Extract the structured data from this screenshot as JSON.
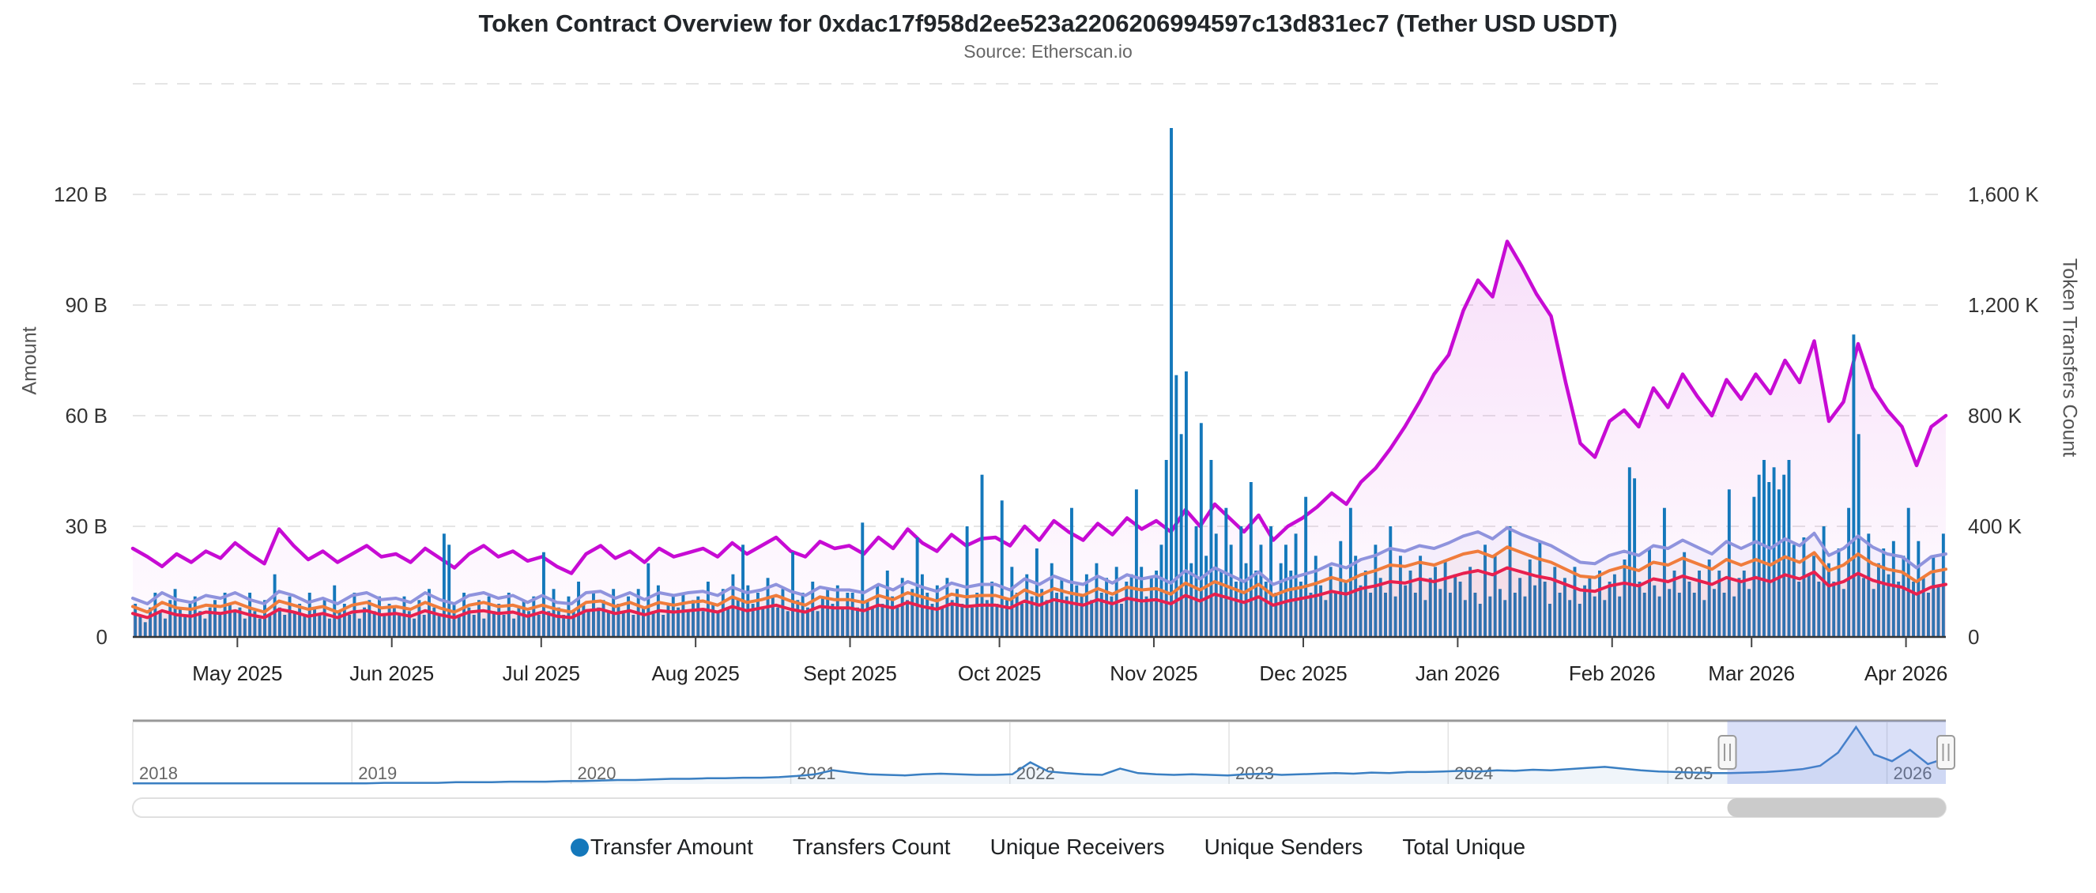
{
  "header": {
    "title": "Token Contract Overview for 0xdac17f958d2ee523a2206206994597c13d831ec7 (Tether USD USDT)",
    "subtitle": "Source: Etherscan.io"
  },
  "chart_data": {
    "type": "combo",
    "title": "Token Contract Overview for 0xdac17f958d2ee523a2206206994597c13d831ec7 (Tether USD USDT)",
    "subtitle": "Source: Etherscan.io",
    "x_range": {
      "start": "2025-04-10",
      "end": "2026-04-08",
      "resolution": "daily"
    },
    "left_axis": {
      "title": "Amount",
      "unit": "B",
      "labels": [
        "0",
        "30 B",
        "60 B",
        "90 B",
        "120 B"
      ],
      "tick_values": [
        0,
        30,
        60,
        90,
        120
      ],
      "max_gridline_value": 150,
      "grid": "dashed"
    },
    "right_axis": {
      "title": "Token Transfers Count",
      "unit": "K",
      "labels": [
        "0",
        "400 K",
        "800 K",
        "1,200 K",
        "1,600 K"
      ],
      "tick_values": [
        0,
        400,
        800,
        1200,
        1600
      ],
      "max_gridline_value": 2000
    },
    "x_axis": {
      "months": [
        [
          "May 2025",
          21
        ],
        [
          "Jun 2025",
          52
        ],
        [
          "Jul 2025",
          82
        ],
        [
          "Aug 2025",
          113
        ],
        [
          "Sept 2025",
          144
        ],
        [
          "Oct 2025",
          174
        ],
        [
          "Nov 2025",
          205
        ],
        [
          "Dec 2025",
          235
        ],
        [
          "Jan 2026",
          266
        ],
        [
          "Feb 2026",
          297
        ],
        [
          "Mar 2026",
          325
        ],
        [
          "Apr 2026",
          356
        ]
      ],
      "total_days": 364
    },
    "series": [
      {
        "name": "Transfer Amount",
        "type": "column",
        "axis": "left",
        "unit": "B",
        "color": "#1478bb",
        "values": [
          9,
          6,
          4,
          8,
          12,
          7,
          5,
          10,
          13,
          8,
          6,
          9,
          11,
          7,
          5,
          8,
          10,
          6,
          12,
          9,
          7,
          8,
          5,
          12,
          7,
          5,
          10,
          6,
          17,
          8,
          6,
          11,
          7,
          9,
          6,
          12,
          8,
          6,
          10,
          5,
          14,
          7,
          9,
          6,
          12,
          5,
          8,
          10,
          7,
          11,
          6,
          9,
          8,
          6,
          11,
          7,
          5,
          10,
          6,
          13,
          8,
          6,
          28,
          25,
          9,
          6,
          12,
          8,
          6,
          10,
          5,
          11,
          7,
          9,
          6,
          12,
          5,
          8,
          10,
          7,
          11,
          6,
          23,
          7,
          13,
          8,
          6,
          11,
          7,
          15,
          9,
          7,
          12,
          8,
          10,
          7,
          13,
          9,
          7,
          11,
          6,
          13,
          8,
          20,
          7,
          14,
          6,
          9,
          11,
          8,
          12,
          7,
          10,
          11,
          7,
          15,
          9,
          7,
          13,
          8,
          17,
          10,
          25,
          14,
          9,
          12,
          8,
          16,
          11,
          8,
          13,
          7,
          23,
          10,
          12,
          8,
          15,
          7,
          11,
          13,
          9,
          14,
          8,
          12,
          12,
          8,
          31,
          10,
          8,
          14,
          9,
          18,
          11,
          8,
          16,
          10,
          13,
          27,
          17,
          12,
          9,
          14,
          8,
          16,
          10,
          13,
          9,
          30,
          8,
          12,
          44,
          10,
          15,
          9,
          37,
          10,
          19,
          12,
          9,
          17,
          11,
          24,
          13,
          10,
          20,
          12,
          16,
          11,
          35,
          14,
          11,
          17,
          10,
          20,
          12,
          16,
          11,
          19,
          9,
          15,
          17,
          40,
          19,
          11,
          16,
          18,
          25,
          48,
          138,
          71,
          55,
          72,
          20,
          30,
          58,
          22,
          48,
          28,
          18,
          35,
          25,
          15,
          30,
          20,
          42,
          18,
          25,
          15,
          30,
          12,
          20,
          25,
          18,
          28,
          15,
          38,
          12,
          22,
          14,
          10,
          19,
          12,
          26,
          15,
          35,
          22,
          14,
          18,
          12,
          25,
          16,
          12,
          30,
          11,
          22,
          14,
          18,
          12,
          22,
          10,
          16,
          19,
          13,
          21,
          12,
          17,
          15,
          10,
          19,
          12,
          9,
          25,
          11,
          22,
          13,
          10,
          30,
          12,
          16,
          11,
          21,
          14,
          26,
          15,
          9,
          19,
          12,
          16,
          10,
          19,
          9,
          14,
          16,
          11,
          18,
          10,
          15,
          17,
          11,
          21,
          46,
          43,
          15,
          12,
          24,
          14,
          11,
          35,
          13,
          18,
          12,
          23,
          15,
          12,
          18,
          10,
          21,
          13,
          18,
          12,
          40,
          11,
          16,
          18,
          13,
          38,
          44,
          48,
          42,
          46,
          40,
          44,
          48,
          25,
          15,
          27,
          17,
          22,
          15,
          30,
          20,
          15,
          24,
          13,
          35,
          82,
          55,
          16,
          28,
          13,
          20,
          24,
          17,
          26,
          15,
          22,
          35,
          15,
          26,
          16,
          12,
          22,
          14,
          28
        ]
      },
      {
        "name": "Transfers Count",
        "type": "area-line",
        "axis": "right",
        "unit": "K",
        "color": "#c70bd4",
        "values": [
          320,
          290,
          255,
          300,
          270,
          310,
          285,
          340,
          300,
          265,
          390,
          330,
          280,
          310,
          270,
          300,
          330,
          290,
          300,
          270,
          320,
          285,
          250,
          300,
          330,
          290,
          310,
          275,
          290,
          255,
          230,
          300,
          330,
          285,
          310,
          270,
          320,
          290,
          305,
          320,
          290,
          340,
          300,
          330,
          360,
          310,
          290,
          345,
          320,
          330,
          300,
          360,
          320,
          390,
          340,
          310,
          370,
          330,
          355,
          360,
          330,
          400,
          350,
          420,
          380,
          350,
          410,
          370,
          430,
          390,
          420,
          380,
          460,
          400,
          480,
          430,
          380,
          440,
          350,
          400,
          430,
          470,
          520,
          480,
          560,
          610,
          680,
          760,
          850,
          950,
          1020,
          1180,
          1290,
          1230,
          1430,
          1340,
          1240,
          1160,
          920,
          700,
          650,
          780,
          820,
          760,
          900,
          830,
          950,
          870,
          800,
          930,
          860,
          950,
          880,
          1000,
          920,
          1070,
          780,
          850,
          1060,
          900,
          820,
          760,
          620,
          760,
          800
        ]
      },
      {
        "name": "Unique Receivers",
        "type": "line",
        "axis": "right",
        "unit": "K",
        "color": "#f07c3c",
        "values": [
          110,
          90,
          125,
          105,
          100,
          115,
          110,
          125,
          105,
          90,
          130,
          115,
          100,
          110,
          90,
          115,
          125,
          105,
          110,
          100,
          125,
          105,
          90,
          115,
          125,
          110,
          115,
          100,
          115,
          100,
          90,
          125,
          130,
          110,
          125,
          105,
          125,
          115,
          125,
          130,
          115,
          145,
          125,
          135,
          150,
          130,
          115,
          145,
          135,
          135,
          125,
          150,
          135,
          160,
          145,
          130,
          155,
          145,
          150,
          150,
          135,
          170,
          150,
          175,
          160,
          150,
          175,
          155,
          180,
          170,
          175,
          155,
          195,
          170,
          200,
          180,
          160,
          190,
          150,
          170,
          180,
          195,
          215,
          200,
          225,
          240,
          260,
          255,
          270,
          260,
          280,
          300,
          310,
          290,
          325,
          305,
          285,
          270,
          245,
          220,
          215,
          240,
          255,
          240,
          270,
          260,
          285,
          265,
          245,
          280,
          260,
          280,
          260,
          290,
          270,
          305,
          240,
          260,
          300,
          265,
          245,
          235,
          200,
          235,
          245
        ]
      },
      {
        "name": "Unique Senders",
        "type": "line",
        "axis": "right",
        "unit": "K",
        "color": "#e8204e",
        "values": [
          85,
          70,
          95,
          80,
          75,
          90,
          85,
          95,
          80,
          70,
          100,
          90,
          75,
          85,
          70,
          90,
          95,
          80,
          85,
          75,
          95,
          80,
          70,
          90,
          95,
          85,
          90,
          75,
          90,
          75,
          70,
          95,
          100,
          85,
          95,
          80,
          95,
          90,
          95,
          100,
          90,
          110,
          95,
          105,
          115,
          100,
          90,
          110,
          105,
          105,
          95,
          115,
          105,
          125,
          110,
          100,
          120,
          110,
          115,
          115,
          105,
          130,
          115,
          135,
          125,
          115,
          135,
          120,
          140,
          130,
          135,
          120,
          150,
          130,
          155,
          140,
          125,
          145,
          115,
          130,
          140,
          150,
          165,
          155,
          175,
          185,
          200,
          195,
          210,
          200,
          215,
          230,
          240,
          225,
          250,
          235,
          220,
          210,
          190,
          170,
          165,
          185,
          195,
          185,
          210,
          200,
          220,
          205,
          190,
          215,
          200,
          215,
          200,
          225,
          210,
          235,
          185,
          200,
          230,
          205,
          190,
          180,
          155,
          180,
          190
        ]
      },
      {
        "name": "Total Unique",
        "type": "line",
        "axis": "right",
        "unit": "K",
        "color": "#8f93dd",
        "values": [
          140,
          120,
          160,
          135,
          125,
          150,
          140,
          160,
          135,
          120,
          165,
          150,
          125,
          140,
          120,
          150,
          160,
          135,
          140,
          125,
          160,
          135,
          120,
          150,
          160,
          140,
          150,
          125,
          150,
          125,
          120,
          160,
          165,
          140,
          160,
          135,
          160,
          150,
          160,
          165,
          150,
          180,
          160,
          170,
          190,
          165,
          150,
          180,
          170,
          170,
          160,
          190,
          170,
          200,
          180,
          165,
          195,
          180,
          190,
          190,
          170,
          210,
          190,
          220,
          200,
          190,
          220,
          195,
          225,
          210,
          220,
          195,
          240,
          210,
          250,
          225,
          200,
          235,
          190,
          210,
          225,
          240,
          265,
          250,
          280,
          295,
          320,
          310,
          330,
          320,
          340,
          365,
          380,
          355,
          395,
          370,
          350,
          330,
          300,
          270,
          265,
          295,
          310,
          295,
          330,
          320,
          350,
          325,
          300,
          345,
          320,
          345,
          320,
          355,
          330,
          375,
          295,
          320,
          365,
          325,
          300,
          290,
          250,
          290,
          300
        ]
      }
    ],
    "navigator": {
      "line_color": "#3a7fc2",
      "years": [
        [
          "2018",
          0
        ],
        [
          "2019",
          365
        ],
        [
          "2020",
          730
        ],
        [
          "2021",
          1096
        ],
        [
          "2022",
          1461
        ],
        [
          "2023",
          1826
        ],
        [
          "2024",
          2191
        ],
        [
          "2025",
          2557
        ],
        [
          "2026",
          2922
        ]
      ],
      "total_days": 3020,
      "values": [
        1,
        1,
        1,
        1,
        1,
        1,
        1,
        1,
        1,
        1,
        1,
        1,
        1,
        1,
        2,
        2,
        2,
        2,
        3,
        3,
        3,
        4,
        4,
        4,
        5,
        5,
        6,
        7,
        7,
        8,
        9,
        9,
        10,
        10,
        11,
        11,
        12,
        14,
        17,
        24,
        20,
        17,
        16,
        15,
        17,
        18,
        17,
        16,
        16,
        17,
        38,
        22,
        19,
        17,
        16,
        27,
        19,
        17,
        16,
        17,
        16,
        15,
        17,
        18,
        16,
        17,
        18,
        19,
        18,
        20,
        19,
        21,
        21,
        22,
        23,
        22,
        24,
        23,
        25,
        24,
        26,
        28,
        30,
        27,
        24,
        22,
        21,
        20,
        19,
        19,
        20,
        21,
        23,
        26,
        32,
        55,
        100,
        52,
        40,
        60,
        35,
        45
      ],
      "selection": {
        "from_day": 2656,
        "to_day": 3020,
        "from": "Apr 2025",
        "to": "Apr 2026"
      }
    },
    "legend": [
      {
        "label": "Transfer Amount",
        "marker": "circle",
        "color": "#1478bb"
      },
      {
        "label": "Transfers Count",
        "marker": "none",
        "color": "#c70bd4"
      },
      {
        "label": "Unique Receivers",
        "marker": "none",
        "color": "#f07c3c"
      },
      {
        "label": "Unique Senders",
        "marker": "none",
        "color": "#e8204e"
      },
      {
        "label": "Total Unique",
        "marker": "none",
        "color": "#8f93dd"
      }
    ],
    "colors": {
      "grid": "#e5e5e5",
      "axis_line": "#343434",
      "tick_text": "#333333",
      "nav_year_text": "#666666",
      "nav_border": "#999999",
      "selection_fill": "rgba(108,130,226,0.25)",
      "scrollbar_thumb": "#cbcbcb"
    }
  }
}
